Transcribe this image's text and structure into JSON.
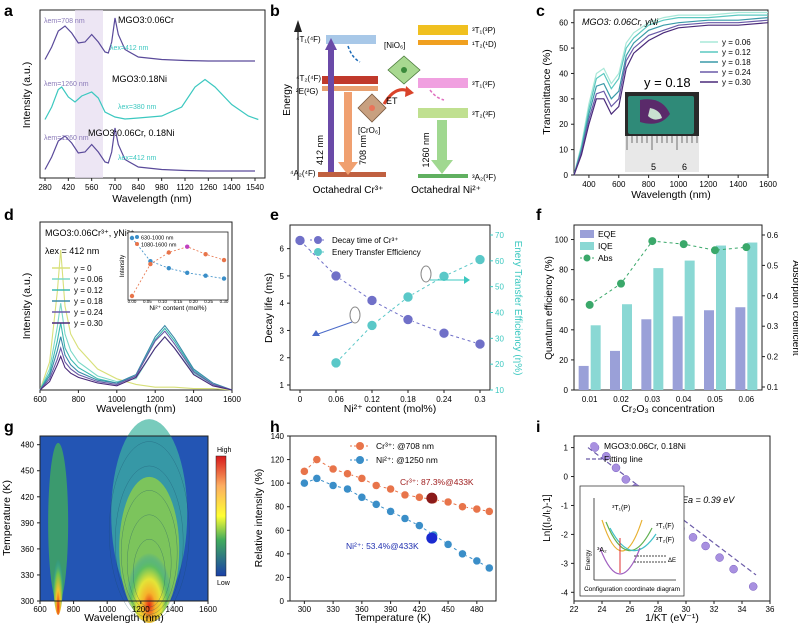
{
  "colors": {
    "teal": "#3cc8c0",
    "purple": "#5a4a9a",
    "orange": "#e8744a",
    "blue": "#3a8ec8",
    "lightteal": "#8ad8d4",
    "green": "#3aa86a"
  },
  "panels": {
    "a": {
      "label": "a",
      "xlabel": "Wavelength (nm)",
      "ylabel": "Intensity (a.u.)",
      "xticks": [
        "280",
        "420",
        "560",
        "700",
        "840",
        "980",
        "1120",
        "1260",
        "1400",
        "1540"
      ],
      "annotations": [
        "MGO3:0.06Cr",
        "MGO3:0.18Ni",
        "MGO3:0.06Cr, 0.18Ni"
      ],
      "lambda_labels": [
        "λem=708 nm",
        "λex=412 nm",
        "λem=1260 nm",
        "λex=380 nm",
        "λem=1260 nm",
        "λex=412 nm"
      ]
    },
    "b": {
      "label": "b",
      "ylabel": "Energy",
      "levels_cr": [
        "⁴T₁(⁴F)",
        "⁴T₂(⁴F)",
        "²E(²G)",
        "⁴A₂(⁴F)"
      ],
      "levels_ni": [
        "³T₁(³P)",
        "¹T₂(¹D)",
        "³T₁(³F)",
        "³T₂(³F)",
        "³A₂(³F)"
      ],
      "arrows": [
        "412 nm",
        "708 nm",
        "1260 nm"
      ],
      "et_label": "ET",
      "cr_octa": "[CrO₆]",
      "ni_octa": "[NiO₆]",
      "xlabel_cr": "Octahedral Cr³⁺",
      "xlabel_ni": "Octahedral Ni²⁺"
    },
    "c": {
      "label": "c",
      "title": "MGO3: 0.06Cr, yNi",
      "xlabel": "Wavelength (nm)",
      "ylabel": "Transmittance (%)",
      "xticks": [
        "400",
        "600",
        "800",
        "1000",
        "1200",
        "1400",
        "1600"
      ],
      "yticks": [
        "0",
        "10",
        "20",
        "30",
        "40",
        "50",
        "60"
      ],
      "inset_label": "y = 0.18",
      "ruler_labels": [
        "5",
        "6"
      ]
    },
    "d": {
      "label": "d",
      "title": "MGO3:0.06Cr³⁺, yNi²⁺",
      "subtitle": "λex = 412 nm",
      "xlabel": "Wavelength (nm)",
      "ylabel": "Intensity (a.u.)",
      "xticks": [
        "600",
        "800",
        "1000",
        "1200",
        "1400",
        "1600"
      ],
      "inset_legend": [
        "630-1000 nm",
        "1080-1600 nm"
      ],
      "inset_xlabel": "Ni²⁺ content (mol%)",
      "inset_ylabel": "Intensity",
      "inset_xticks": [
        "0.00",
        "0.05",
        "0.10",
        "0.15",
        "0.20",
        "0.25",
        "0.30"
      ]
    },
    "e": {
      "label": "e",
      "xlabel": "Ni²⁺ content (mol%)",
      "ylabel": "Decay life (ms)",
      "ylabel2": "Enery Transfer Efficiency (η%)",
      "legend": [
        "Decay time of Cr³⁺",
        "Enery Transfer Efficiency"
      ],
      "xticks": [
        "0",
        "0.06",
        "0.12",
        "0.18",
        "0.24",
        "0.3"
      ],
      "yticks": [
        "1",
        "2",
        "3",
        "4",
        "5",
        "6"
      ],
      "yticks2": [
        "10",
        "20",
        "30",
        "40",
        "50",
        "60",
        "70"
      ]
    },
    "f": {
      "label": "f",
      "xlabel": "Cr₂O₃ concentration",
      "ylabel": "Quantum efficiency (%)",
      "ylabel2": "Absorption coefficient",
      "legend": [
        "EQE",
        "IQE",
        "Abs"
      ],
      "yticks": [
        "0",
        "20",
        "40",
        "60",
        "80",
        "100"
      ],
      "yticks2": [
        "0.1",
        "0.2",
        "0.3",
        "0.4",
        "0.5",
        "0.6"
      ]
    },
    "g": {
      "label": "g",
      "xlabel": "Wavelength (nm)",
      "ylabel": "Temperature (K)",
      "xticks": [
        "600",
        "800",
        "1000",
        "1200",
        "1400",
        "1600"
      ],
      "yticks": [
        "300",
        "330",
        "360",
        "390",
        "420",
        "450",
        "480"
      ],
      "colorbar": [
        "High",
        "Low"
      ]
    },
    "h": {
      "label": "h",
      "xlabel": "Temperature (K)",
      "ylabel": "Relative intensity (%)",
      "legend": [
        "Cr³⁺: @708 nm",
        "Ni²⁺: @1250 nm"
      ],
      "annotations": [
        "Cr³⁺: 87.3%@433K",
        "Ni²⁺: 53.4%@433K"
      ],
      "xticks": [
        "300",
        "330",
        "360",
        "390",
        "420",
        "450",
        "480"
      ],
      "yticks": [
        "0",
        "20",
        "40",
        "60",
        "80",
        "100",
        "120",
        "140"
      ]
    },
    "i": {
      "label": "i",
      "xlabel": "1/KT (eV⁻¹)",
      "ylabel": "Ln[(I₀/Iₜ)-1]",
      "legend": [
        "MGO3:0.06Cr, 0.18Ni",
        "Fitting line"
      ],
      "ea": "Ea = 0.39 eV",
      "xticks": [
        "22",
        "24",
        "26",
        "28",
        "30",
        "32",
        "34",
        "36"
      ],
      "yticks": [
        "-4",
        "-3",
        "-2",
        "-1",
        "0",
        "1"
      ],
      "inset_levels": [
        "³T₁(P)",
        "³T₁(F)",
        "³T₂(F)",
        "³A₂"
      ],
      "inset_ylabel": "Energy",
      "inset_de": "ΔE",
      "inset_caption": "Configuration coordinate diagram"
    }
  },
  "chart_data": [
    {
      "panel": "a",
      "type": "line",
      "series": [
        {
          "name": "MGO3:0.06Cr",
          "x": [
            280,
            320,
            360,
            400,
            440,
            480,
            520,
            560,
            600,
            640,
            660,
            680,
            700,
            720,
            760,
            840,
            980,
            1120,
            1260,
            1400,
            1540
          ],
          "y": [
            5,
            30,
            62,
            72,
            58,
            38,
            40,
            55,
            40,
            20,
            18,
            40,
            88,
            55,
            25,
            10,
            5,
            3,
            2,
            2,
            2
          ]
        },
        {
          "name": "MGO3:0.18Ni",
          "x": [
            280,
            320,
            360,
            380,
            420,
            460,
            500,
            560,
            600,
            640,
            700,
            760,
            840,
            980,
            1100,
            1180,
            1240,
            1300,
            1400,
            1500,
            1560
          ],
          "y": [
            5,
            30,
            65,
            70,
            50,
            40,
            52,
            60,
            48,
            20,
            10,
            6,
            8,
            12,
            30,
            70,
            85,
            70,
            35,
            12,
            5
          ]
        },
        {
          "name": "MGO3:0.06Cr, 0.18Ni",
          "x": [
            280,
            320,
            360,
            400,
            440,
            480,
            520,
            560,
            600,
            640,
            660,
            680,
            700,
            720,
            760,
            840,
            980,
            1120,
            1260,
            1400,
            1540
          ],
          "y": [
            5,
            30,
            62,
            72,
            58,
            38,
            40,
            55,
            40,
            20,
            18,
            40,
            88,
            55,
            25,
            10,
            5,
            3,
            2,
            2,
            2
          ]
        }
      ]
    },
    {
      "panel": "c",
      "type": "line",
      "x": [
        300,
        350,
        400,
        450,
        500,
        550,
        600,
        650,
        700,
        800,
        900,
        1000,
        1200,
        1400,
        1600
      ],
      "ylim": [
        0,
        65
      ],
      "xlim": [
        300,
        1600
      ],
      "series": [
        {
          "name": "y = 0.06",
          "values": [
            0,
            12,
            28,
            40,
            42,
            36,
            40,
            52,
            56,
            60,
            62,
            63,
            63,
            64,
            64
          ]
        },
        {
          "name": "y = 0.12",
          "values": [
            0,
            11,
            26,
            38,
            40,
            34,
            38,
            50,
            54,
            59,
            61,
            62,
            62,
            63,
            63
          ]
        },
        {
          "name": "y = 0.18",
          "values": [
            0,
            10,
            24,
            35,
            36,
            30,
            33,
            47,
            52,
            57,
            59,
            60,
            61,
            61,
            62
          ]
        },
        {
          "name": "y = 0.24",
          "values": [
            0,
            9,
            22,
            32,
            33,
            27,
            30,
            45,
            50,
            55,
            57,
            59,
            60,
            60,
            61
          ]
        },
        {
          "name": "y = 0.30",
          "values": [
            0,
            8,
            20,
            30,
            30,
            24,
            27,
            42,
            48,
            53,
            56,
            58,
            59,
            59,
            60
          ]
        }
      ]
    },
    {
      "panel": "d",
      "type": "line",
      "x": [
        600,
        650,
        690,
        708,
        730,
        760,
        800,
        900,
        1000,
        1100,
        1200,
        1250,
        1300,
        1400,
        1500,
        1600
      ],
      "xlim": [
        600,
        1600
      ],
      "series": [
        {
          "name": "y = 0",
          "values": [
            0,
            20,
            70,
            100,
            60,
            40,
            30,
            15,
            8,
            4,
            2,
            2,
            2,
            1,
            1,
            0
          ]
        },
        {
          "name": "y = 0.06",
          "values": [
            0,
            15,
            45,
            62,
            40,
            28,
            20,
            10,
            6,
            8,
            30,
            38,
            30,
            12,
            4,
            0
          ]
        },
        {
          "name": "y = 0.12",
          "values": [
            0,
            12,
            35,
            48,
            30,
            22,
            16,
            8,
            5,
            10,
            36,
            44,
            35,
            14,
            4,
            0
          ]
        },
        {
          "name": "y = 0.18",
          "values": [
            0,
            10,
            28,
            38,
            25,
            18,
            13,
            7,
            5,
            11,
            38,
            46,
            37,
            15,
            5,
            0
          ]
        },
        {
          "name": "y = 0.24",
          "values": [
            0,
            8,
            22,
            30,
            20,
            15,
            11,
            6,
            4,
            10,
            35,
            42,
            33,
            13,
            4,
            0
          ]
        },
        {
          "name": "y = 0.30",
          "values": [
            0,
            6,
            18,
            24,
            16,
            12,
            9,
            5,
            3,
            9,
            30,
            38,
            30,
            11,
            3,
            0
          ]
        }
      ],
      "inset": {
        "x": [
          0,
          0.06,
          0.12,
          0.18,
          0.24,
          0.3
        ],
        "series": [
          {
            "name": "630-1000 nm",
            "values": [
              100,
              60,
              48,
              40,
              35,
              30
            ]
          },
          {
            "name": "1080-1600 nm",
            "values": [
              0,
              55,
              75,
              85,
              72,
              62
            ]
          }
        ]
      }
    },
    {
      "panel": "e",
      "type": "scatter",
      "x": [
        0,
        0.06,
        0.12,
        0.18,
        0.24,
        0.3
      ],
      "series": [
        {
          "name": "Decay time of Cr³⁺",
          "axis": "left",
          "values": [
            6.3,
            5.0,
            4.1,
            3.4,
            2.9,
            2.5
          ]
        },
        {
          "name": "Enery Transfer Efficiency",
          "axis": "right",
          "values": [
            null,
            20.5,
            35,
            46,
            54,
            60.5
          ]
        }
      ],
      "ylim": [
        1,
        6.5
      ],
      "y2lim": [
        10,
        70
      ]
    },
    {
      "panel": "f",
      "type": "bar",
      "categories": [
        "0.01",
        "0.02",
        "0.03",
        "0.04",
        "0.05",
        "0.06"
      ],
      "series": [
        {
          "name": "EQE",
          "values": [
            16,
            26,
            47,
            49,
            53,
            55
          ]
        },
        {
          "name": "IQE",
          "values": [
            43,
            57,
            81,
            86,
            96,
            98
          ]
        },
        {
          "name": "Abs",
          "axis": "right",
          "values": [
            0.37,
            0.44,
            0.58,
            0.57,
            0.55,
            0.56
          ]
        }
      ],
      "ylim": [
        0,
        105
      ],
      "y2lim": [
        0.1,
        0.6
      ]
    },
    {
      "panel": "g",
      "type": "heatmap",
      "xlim": [
        600,
        1600
      ],
      "ylim": [
        300,
        490
      ],
      "peaks": [
        {
          "x": 708,
          "label": "Cr³⁺"
        },
        {
          "x": 1250,
          "label": "Ni²⁺"
        }
      ]
    },
    {
      "panel": "h",
      "type": "line",
      "x": [
        300,
        313,
        330,
        345,
        360,
        375,
        390,
        405,
        420,
        435,
        450,
        465,
        480,
        493
      ],
      "ylim": [
        0,
        140
      ],
      "xlim": [
        285,
        500
      ],
      "series": [
        {
          "name": "Cr³⁺: @708 nm",
          "values": [
            110,
            120,
            112,
            108,
            104,
            98,
            95,
            90,
            88,
            86,
            84,
            80,
            78,
            76
          ]
        },
        {
          "name": "Ni²⁺: @1250 nm",
          "values": [
            100,
            104,
            98,
            95,
            88,
            82,
            76,
            70,
            64,
            56,
            48,
            40,
            34,
            28
          ]
        }
      ],
      "highlight": [
        {
          "x": 433,
          "y": 87.3
        },
        {
          "x": 433,
          "y": 53.4
        }
      ]
    },
    {
      "panel": "i",
      "type": "scatter",
      "x": [
        23.5,
        24.3,
        25.0,
        25.7,
        26.4,
        27.2,
        28.0,
        28.8,
        29.6,
        30.5,
        31.4,
        32.4,
        33.4,
        34.8
      ],
      "y": [
        1.0,
        0.7,
        0.3,
        -0.1,
        -0.4,
        -0.8,
        -1.1,
        -1.5,
        -1.8,
        -2.1,
        -2.4,
        -2.8,
        -3.2,
        -3.8
      ],
      "xlim": [
        22,
        36
      ],
      "ylim": [
        -4.3,
        1.4
      ],
      "fit": {
        "x": [
          23,
          35
        ],
        "y": [
          1.0,
          -3.4
        ]
      }
    }
  ]
}
